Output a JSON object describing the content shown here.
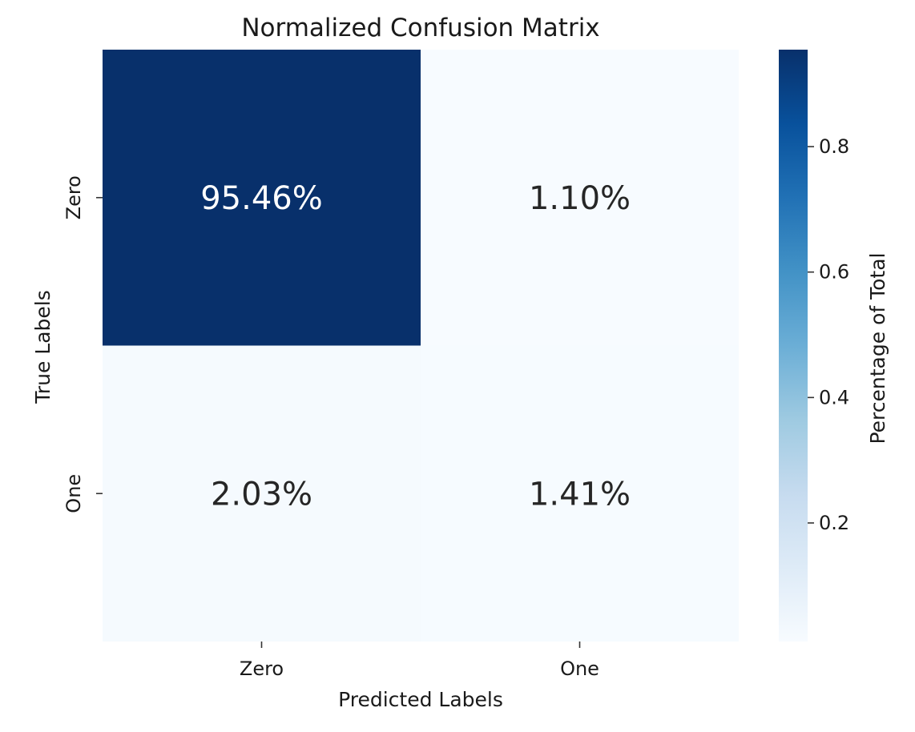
{
  "chart_data": {
    "type": "heatmap",
    "title": "Normalized Confusion Matrix",
    "xlabel": "Predicted Labels",
    "ylabel": "True Labels",
    "x_categories": [
      "Zero",
      "One"
    ],
    "y_categories": [
      "Zero",
      "One"
    ],
    "values": [
      [
        0.9546,
        0.011
      ],
      [
        0.0203,
        0.0141
      ]
    ],
    "cell_labels": [
      [
        "95.46%",
        "1.10%"
      ],
      [
        "2.03%",
        "1.41%"
      ]
    ],
    "colormap": "Blues",
    "colorbar": {
      "label": "Percentage of Total",
      "range": [
        0.011,
        0.9546
      ],
      "ticks": [
        0.2,
        0.4,
        0.6,
        0.8
      ],
      "tick_labels": [
        "0.2",
        "0.4",
        "0.6",
        "0.8"
      ]
    }
  }
}
